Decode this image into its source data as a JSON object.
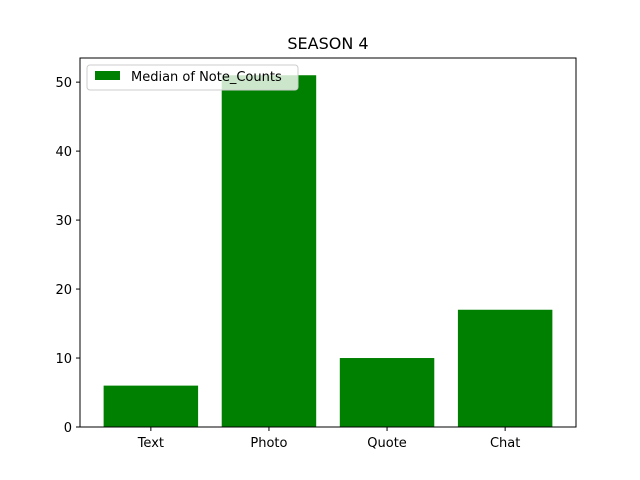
{
  "chart_data": {
    "type": "bar",
    "title": "SEASON 4",
    "xlabel": "",
    "ylabel": "",
    "categories": [
      "Text",
      "Photo",
      "Quote",
      "Chat"
    ],
    "series": [
      {
        "name": "Median of Note_Counts",
        "values": [
          6,
          51,
          10,
          17
        ],
        "color": "#008000"
      }
    ],
    "ylim": [
      0,
      53.5
    ],
    "yticks": [
      0,
      10,
      20,
      30,
      40,
      50
    ],
    "grid": false,
    "legend_position": "top-left"
  }
}
